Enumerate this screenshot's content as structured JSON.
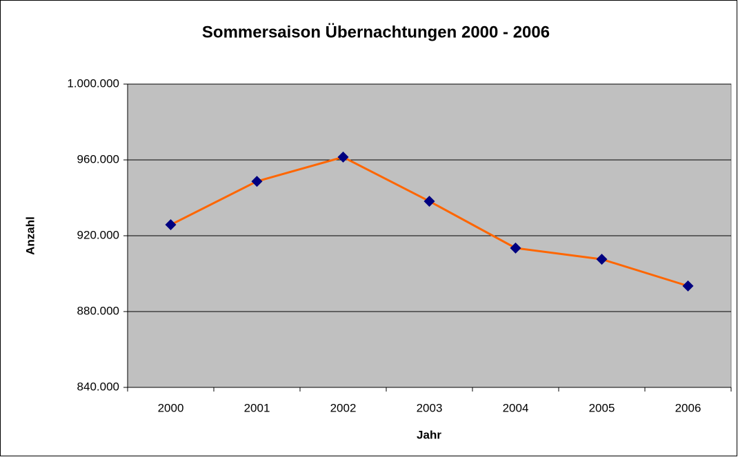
{
  "chart_data": {
    "type": "line",
    "title": "Sommersaison Übernachtungen 2000 - 2006",
    "x_label": "Jahr",
    "y_label": "Anzahl",
    "categories": [
      "2000",
      "2001",
      "2002",
      "2003",
      "2004",
      "2005",
      "2006"
    ],
    "values": [
      925800,
      948700,
      961500,
      938200,
      913500,
      907600,
      893500
    ],
    "color": "#ff6600",
    "marker_color": "#000080",
    "plot_background": "#c0c0c0",
    "ylim": [
      840000,
      1000000
    ],
    "yticks": [
      {
        "value": 840000,
        "label": "840.000"
      },
      {
        "value": 880000,
        "label": "880.000"
      },
      {
        "value": 920000,
        "label": "920.000"
      },
      {
        "value": 960000,
        "label": "960.000"
      },
      {
        "value": 1000000,
        "label": "1.000.000"
      }
    ],
    "grid": true
  }
}
